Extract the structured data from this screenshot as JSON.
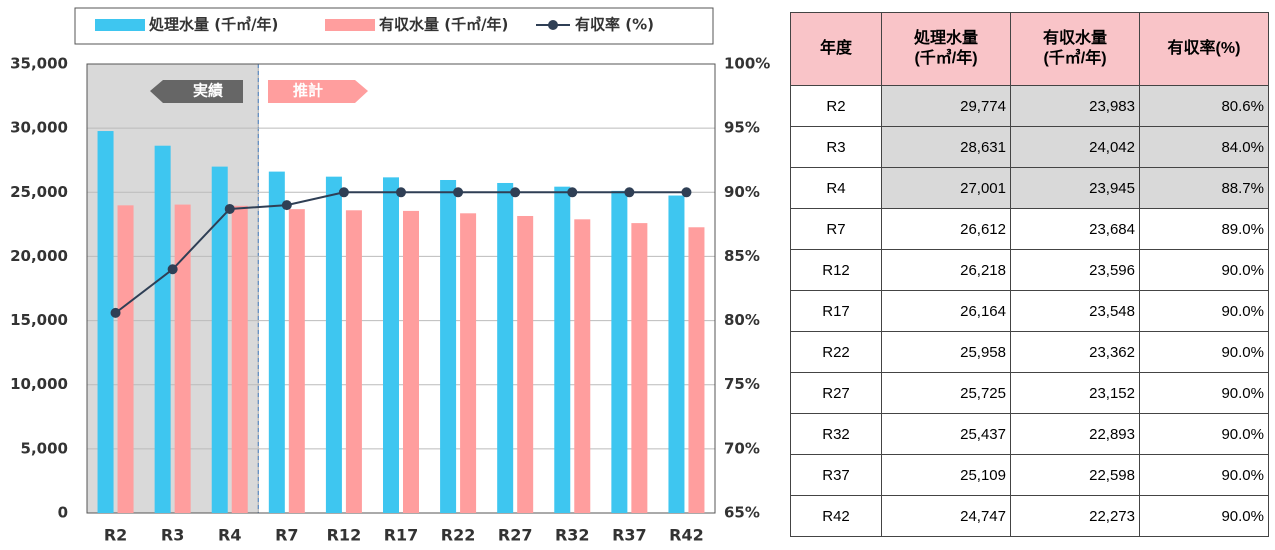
{
  "chart_data": {
    "type": "bar",
    "categories": [
      "R2",
      "R3",
      "R4",
      "R7",
      "R12",
      "R17",
      "R22",
      "R27",
      "R32",
      "R37",
      "R42"
    ],
    "series": [
      {
        "name": "処理水量 (千㎥/年)",
        "color": "#3ec6f0",
        "values": [
          29774,
          28631,
          27001,
          26612,
          26218,
          26164,
          25958,
          25725,
          25437,
          25109,
          24747
        ]
      },
      {
        "name": "有収水量 (千㎥/年)",
        "color": "#ff9e9e",
        "values": [
          23983,
          24042,
          23945,
          23684,
          23596,
          23548,
          23362,
          23152,
          22893,
          22598,
          22273
        ]
      },
      {
        "name": "有収率 (%)",
        "type": "line",
        "axis": "y2",
        "color": "#2f3f55",
        "values": [
          80.6,
          84.0,
          88.7,
          89.0,
          90.0,
          90.0,
          90.0,
          90.0,
          90.0,
          90.0,
          90.0
        ]
      }
    ],
    "ylim": [
      0,
      35000
    ],
    "yticks": [
      0,
      {
        "value": 5000,
        "label": "5,000"
      },
      {
        "value": 10000,
        "label": "10,000"
      },
      {
        "value": 15000,
        "label": "15,000"
      },
      {
        "value": 20000,
        "label": "20,000"
      },
      {
        "value": 25000,
        "label": "25,000"
      },
      {
        "value": 30000,
        "label": "30,000"
      },
      {
        "value": 35000,
        "label": "35,000"
      }
    ],
    "y2lim": [
      65,
      100
    ],
    "y2ticks": [
      {
        "value": 65,
        "label": "65%"
      },
      {
        "value": 70,
        "label": "70%"
      },
      {
        "value": 75,
        "label": "75%"
      },
      {
        "value": 80,
        "label": "80%"
      },
      {
        "value": 85,
        "label": "85%"
      },
      {
        "value": 90,
        "label": "90%"
      },
      {
        "value": 95,
        "label": "95%"
      },
      {
        "value": 100,
        "label": "100%"
      }
    ],
    "grid": true,
    "annotations": [
      "実績",
      "推計"
    ]
  },
  "table": {
    "header": [
      [
        "年度"
      ],
      [
        "処理水量",
        "(千㎥/年)"
      ],
      [
        "有収水量",
        "(千㎥/年)"
      ],
      [
        "有収率(%)"
      ]
    ],
    "rows": [
      [
        "R2",
        "29,774",
        "23,983",
        "80.6%"
      ],
      [
        "R3",
        "28,631",
        "24,042",
        "84.0%"
      ],
      [
        "R4",
        "27,001",
        "23,945",
        "88.7%"
      ],
      [
        "R7",
        "26,612",
        "23,684",
        "89.0%"
      ],
      [
        "R12",
        "26,218",
        "23,596",
        "90.0%"
      ],
      [
        "R17",
        "26,164",
        "23,548",
        "90.0%"
      ],
      [
        "R22",
        "25,958",
        "23,362",
        "90.0%"
      ],
      [
        "R27",
        "25,725",
        "23,152",
        "90.0%"
      ],
      [
        "R32",
        "25,437",
        "22,893",
        "90.0%"
      ],
      [
        "R37",
        "25,109",
        "22,598",
        "90.0%"
      ],
      [
        "R42",
        "24,747",
        "22,273",
        "90.0%"
      ]
    ]
  }
}
